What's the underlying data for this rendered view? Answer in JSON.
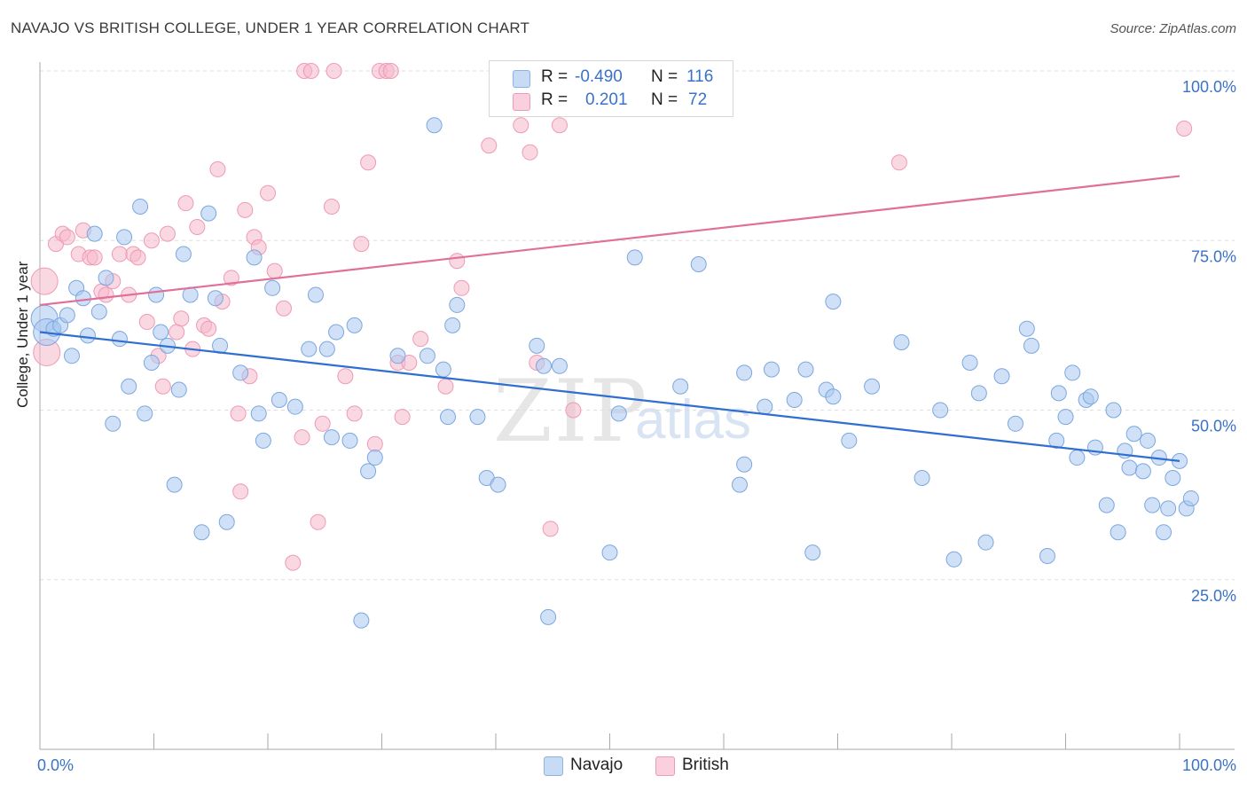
{
  "title": "NAVAJO VS BRITISH COLLEGE, UNDER 1 YEAR CORRELATION CHART",
  "source": "Source: ZipAtlas.com",
  "watermark": {
    "zip": "ZIP",
    "atlas": "atlas"
  },
  "colors": {
    "navajo": "#a9c8f0",
    "navajo_line": "#2f6fd0",
    "british": "#f6b8cb",
    "british_line": "#e0709a",
    "axis_text": "#3a72c8",
    "grid": "#dddddd"
  },
  "legend": {
    "navajo": {
      "r_label": "R =",
      "r_value": "-0.490",
      "n_label": "N =",
      "n_value": "116"
    },
    "british": {
      "r_label": "R =",
      "r_value": "0.201",
      "n_label": "N =",
      "n_value": "72"
    }
  },
  "bottom_legend": {
    "navajo": "Navajo",
    "british": "British"
  },
  "chart_data": {
    "type": "scatter",
    "title": "NAVAJO VS BRITISH COLLEGE, UNDER 1 YEAR CORRELATION CHART",
    "xlabel": "",
    "ylabel": "College, Under 1 year",
    "xlim": [
      0,
      100
    ],
    "ylim": [
      0,
      100
    ],
    "x_tick_labels": [
      "0.0%",
      "100.0%"
    ],
    "y_tick_labels": [
      "25.0%",
      "50.0%",
      "75.0%",
      "100.0%"
    ],
    "y_ticks": [
      25,
      50,
      75,
      100
    ],
    "grid": true,
    "legend_position": "top-center",
    "series": [
      {
        "name": "Navajo",
        "trend": [
          [
            0,
            61.5
          ],
          [
            100,
            42.5
          ]
        ],
        "points": [
          [
            0.4,
            63.5
          ],
          [
            0.6,
            61.5
          ],
          [
            1.2,
            62
          ],
          [
            1.8,
            62.5
          ],
          [
            2.4,
            64
          ],
          [
            2.8,
            58
          ],
          [
            3.2,
            68
          ],
          [
            3.8,
            66.5
          ],
          [
            4.2,
            61
          ],
          [
            4.8,
            76
          ],
          [
            5.2,
            64.5
          ],
          [
            5.8,
            69.5
          ],
          [
            6.4,
            48
          ],
          [
            7,
            60.5
          ],
          [
            7.4,
            75.5
          ],
          [
            7.8,
            53.5
          ],
          [
            8.8,
            80
          ],
          [
            9.2,
            49.5
          ],
          [
            9.8,
            57
          ],
          [
            10.2,
            67
          ],
          [
            10.6,
            61.5
          ],
          [
            11.2,
            59.5
          ],
          [
            11.8,
            39
          ],
          [
            12.2,
            53
          ],
          [
            12.6,
            73
          ],
          [
            13.2,
            67
          ],
          [
            14.2,
            32
          ],
          [
            14.8,
            79
          ],
          [
            15.4,
            66.5
          ],
          [
            15.8,
            59.5
          ],
          [
            16.4,
            33.5
          ],
          [
            17.6,
            55.5
          ],
          [
            18.8,
            72.5
          ],
          [
            19.2,
            49.5
          ],
          [
            19.6,
            45.5
          ],
          [
            20.4,
            68
          ],
          [
            21,
            51.5
          ],
          [
            22.4,
            50.5
          ],
          [
            23.6,
            59
          ],
          [
            24.2,
            67
          ],
          [
            25.2,
            59
          ],
          [
            25.6,
            46
          ],
          [
            26,
            61.5
          ],
          [
            27.2,
            45.5
          ],
          [
            27.6,
            62.5
          ],
          [
            28.2,
            19
          ],
          [
            28.8,
            41
          ],
          [
            29.4,
            43
          ],
          [
            31.4,
            58
          ],
          [
            34,
            58
          ],
          [
            34.6,
            92
          ],
          [
            35.4,
            56
          ],
          [
            35.8,
            49
          ],
          [
            36.2,
            62.5
          ],
          [
            36.6,
            65.5
          ],
          [
            38.4,
            49
          ],
          [
            39.2,
            40
          ],
          [
            40.2,
            39
          ],
          [
            43.6,
            59.5
          ],
          [
            44.2,
            56.5
          ],
          [
            44.6,
            19.5
          ],
          [
            45.6,
            56.5
          ],
          [
            50,
            29
          ],
          [
            50.8,
            49.5
          ],
          [
            52.2,
            72.5
          ],
          [
            56.2,
            53.5
          ],
          [
            57.8,
            71.5
          ],
          [
            61.4,
            39
          ],
          [
            61.8,
            42
          ],
          [
            61.8,
            55.5
          ],
          [
            63.6,
            50.5
          ],
          [
            64.2,
            56
          ],
          [
            66.2,
            51.5
          ],
          [
            67.2,
            56
          ],
          [
            67.8,
            29
          ],
          [
            69,
            53
          ],
          [
            69.6,
            52
          ],
          [
            69.6,
            66
          ],
          [
            71,
            45.5
          ],
          [
            73,
            53.5
          ],
          [
            75.6,
            60
          ],
          [
            77.4,
            40
          ],
          [
            79,
            50
          ],
          [
            80.2,
            28
          ],
          [
            81.6,
            57
          ],
          [
            82.4,
            52.5
          ],
          [
            83,
            30.5
          ],
          [
            84.4,
            55
          ],
          [
            85.6,
            48
          ],
          [
            86.6,
            62
          ],
          [
            87,
            59.5
          ],
          [
            88.4,
            28.5
          ],
          [
            89.2,
            45.5
          ],
          [
            89.4,
            52.5
          ],
          [
            90,
            49
          ],
          [
            90.6,
            55.5
          ],
          [
            91,
            43
          ],
          [
            91.8,
            51.5
          ],
          [
            92.2,
            52
          ],
          [
            92.6,
            44.5
          ],
          [
            93.6,
            36
          ],
          [
            94.2,
            50
          ],
          [
            94.6,
            32
          ],
          [
            95.2,
            44
          ],
          [
            95.6,
            41.5
          ],
          [
            96,
            46.5
          ],
          [
            96.8,
            41
          ],
          [
            97.2,
            45.5
          ],
          [
            97.6,
            36
          ],
          [
            98.2,
            43
          ],
          [
            98.6,
            32
          ],
          [
            99,
            35.5
          ],
          [
            99.4,
            40
          ],
          [
            100,
            42.5
          ],
          [
            100.6,
            35.5
          ],
          [
            101,
            37
          ]
        ]
      },
      {
        "name": "British",
        "trend": [
          [
            0,
            65.5
          ],
          [
            100,
            84.5
          ]
        ],
        "points": [
          [
            0.4,
            69
          ],
          [
            0.6,
            58.5
          ],
          [
            1.4,
            74.5
          ],
          [
            2,
            76
          ],
          [
            2.4,
            75.5
          ],
          [
            3.4,
            73
          ],
          [
            3.8,
            76.5
          ],
          [
            4.4,
            72.5
          ],
          [
            4.8,
            72.5
          ],
          [
            5.4,
            67.5
          ],
          [
            5.8,
            67
          ],
          [
            6.4,
            69
          ],
          [
            7,
            73
          ],
          [
            7.8,
            67
          ],
          [
            8.2,
            73
          ],
          [
            8.6,
            72.5
          ],
          [
            9.4,
            63
          ],
          [
            9.8,
            75
          ],
          [
            10.4,
            58
          ],
          [
            10.8,
            53.5
          ],
          [
            11.2,
            76
          ],
          [
            12,
            61.5
          ],
          [
            12.4,
            63.5
          ],
          [
            12.8,
            80.5
          ],
          [
            13.4,
            59
          ],
          [
            13.8,
            77
          ],
          [
            14.4,
            62.5
          ],
          [
            14.8,
            62
          ],
          [
            15.6,
            85.5
          ],
          [
            16,
            66
          ],
          [
            16.8,
            69.5
          ],
          [
            17.4,
            49.5
          ],
          [
            17.6,
            38
          ],
          [
            18,
            79.5
          ],
          [
            18.4,
            55
          ],
          [
            18.8,
            75.5
          ],
          [
            19.2,
            74
          ],
          [
            20,
            82
          ],
          [
            20.6,
            70.5
          ],
          [
            21.4,
            65
          ],
          [
            22.2,
            27.5
          ],
          [
            23,
            46
          ],
          [
            23.2,
            100
          ],
          [
            23.8,
            100
          ],
          [
            24.4,
            33.5
          ],
          [
            24.8,
            48
          ],
          [
            25.6,
            80
          ],
          [
            25.8,
            100
          ],
          [
            26.8,
            55
          ],
          [
            27.6,
            49.5
          ],
          [
            28.2,
            74.5
          ],
          [
            28.8,
            86.5
          ],
          [
            29.4,
            45
          ],
          [
            29.8,
            100
          ],
          [
            30.4,
            100
          ],
          [
            30.8,
            100
          ],
          [
            31.4,
            57
          ],
          [
            31.8,
            49
          ],
          [
            32.4,
            57
          ],
          [
            33.4,
            60.5
          ],
          [
            35.6,
            53.5
          ],
          [
            36.6,
            72
          ],
          [
            37,
            68
          ],
          [
            39.4,
            89
          ],
          [
            42.2,
            92
          ],
          [
            43,
            88
          ],
          [
            43.6,
            57
          ],
          [
            44.8,
            32.5
          ],
          [
            45.6,
            92
          ],
          [
            46.8,
            50
          ],
          [
            75.4,
            86.5
          ],
          [
            100.4,
            91.5
          ]
        ]
      }
    ]
  }
}
